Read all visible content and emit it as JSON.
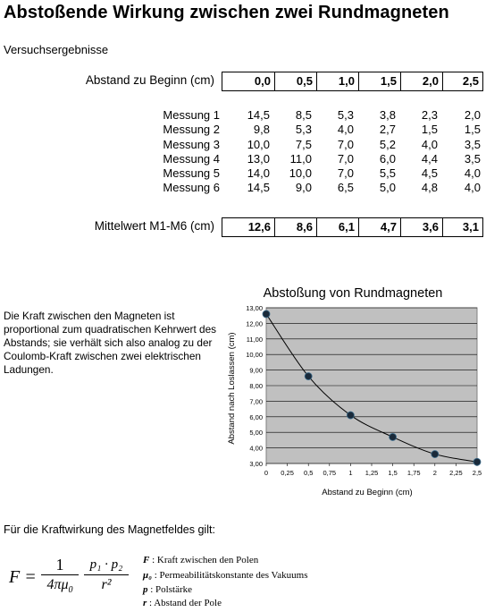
{
  "title": "Abstoßende Wirkung zwischen zwei Rundmagneten",
  "subtitle": "Versuchsergebnisse",
  "table": {
    "start_label": "Abstand zu Beginn (cm)",
    "start_values": [
      "0,0",
      "0,5",
      "1,0",
      "1,5",
      "2,0",
      "2,5"
    ],
    "measurements": [
      {
        "label": "Messung 1",
        "values": [
          "14,5",
          "8,5",
          "5,3",
          "3,8",
          "2,3",
          "2,0"
        ]
      },
      {
        "label": "Messung 2",
        "values": [
          "9,8",
          "5,3",
          "4,0",
          "2,7",
          "1,5",
          "1,5"
        ]
      },
      {
        "label": "Messung 3",
        "values": [
          "10,0",
          "7,5",
          "7,0",
          "5,2",
          "4,0",
          "3,5"
        ]
      },
      {
        "label": "Messung 4",
        "values": [
          "13,0",
          "11,0",
          "7,0",
          "6,0",
          "4,4",
          "3,5"
        ]
      },
      {
        "label": "Messung 5",
        "values": [
          "14,0",
          "10,0",
          "7,0",
          "5,5",
          "4,5",
          "4,0"
        ]
      },
      {
        "label": "Messung 6",
        "values": [
          "14,5",
          "9,0",
          "6,5",
          "5,0",
          "4,8",
          "4,0"
        ]
      }
    ],
    "mean_label": "Mittelwert M1-M6 (cm)",
    "mean_values": [
      "12,6",
      "8,6",
      "6,1",
      "4,7",
      "3,6",
      "3,1"
    ]
  },
  "description": "Die Kraft zwischen den Magneten ist proportional zum quadratischen Kehrwert des Abstands; sie verhält sich also analog zu der Coulomb-Kraft zwischen zwei elektrischen Ladungen.",
  "chart_data": {
    "type": "line",
    "title": "Abstoßung von Rundmagneten",
    "xlabel": "Abstand zu Beginn (cm)",
    "ylabel": "Abstand nach Loslassen (cm)",
    "x": [
      0,
      0.5,
      1.0,
      1.5,
      2.0,
      2.5
    ],
    "y": [
      12.6,
      8.6,
      6.1,
      4.7,
      3.6,
      3.1
    ],
    "xlim": [
      0,
      2.5
    ],
    "ylim": [
      3,
      13
    ],
    "xticks": [
      "0",
      "0,25",
      "0,5",
      "0,75",
      "1",
      "1,25",
      "1,5",
      "1,75",
      "2",
      "2,25",
      "2,5"
    ],
    "yticks": [
      "3,00",
      "4,00",
      "5,00",
      "6,00",
      "7,00",
      "8,00",
      "9,00",
      "10,00",
      "11,00",
      "12,00",
      "13,00"
    ],
    "grid": true,
    "plot_background": "#c0c0c0",
    "marker_color": "#1a2a3a",
    "line_color": "#000000"
  },
  "formula_intro": "Für die Kraftwirkung des Magnetfeldes gilt:",
  "formula": {
    "lhs": "F =",
    "coef_num": "1",
    "coef_den": "4πμ",
    "coef_den_sub": "0",
    "frac_num": "p₁ · p₂",
    "frac_den": "r²"
  },
  "legend": [
    {
      "sym": "F",
      "text": " : Kraft zwischen den Polen"
    },
    {
      "sym": "μ₀",
      "text": " : Permeabilitätskonstante des Vakuums"
    },
    {
      "sym": "p",
      "text": " : Polstärke"
    },
    {
      "sym": "r",
      "text": " : Abstand der Pole"
    }
  ]
}
